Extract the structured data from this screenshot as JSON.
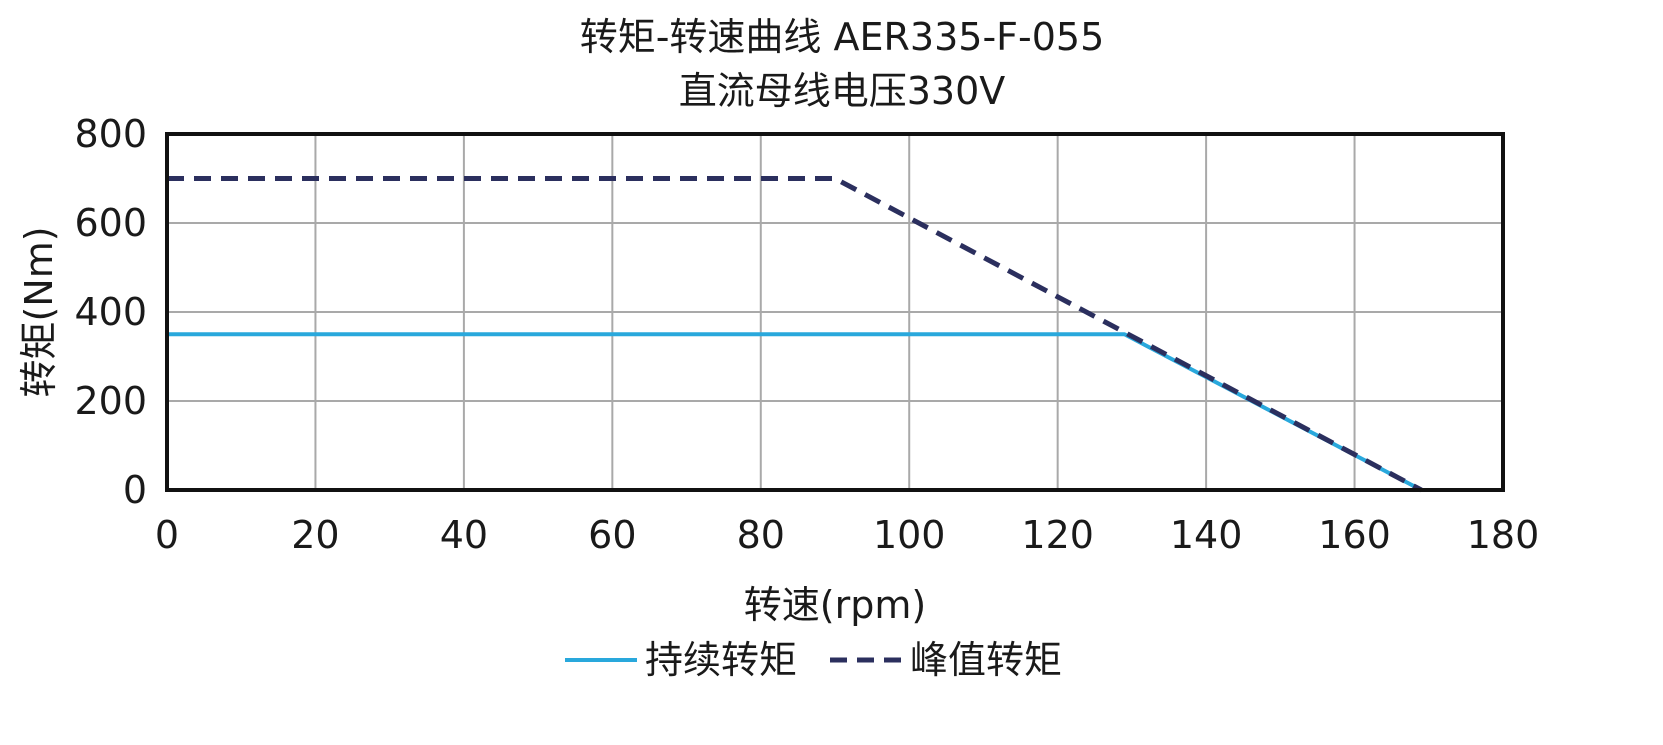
{
  "chart_data": {
    "type": "line",
    "title": "转矩-转速曲线 AER335-F-055",
    "subtitle": "直流母线电压330V",
    "xlabel": "转速(rpm)",
    "ylabel": "转矩(Nm)",
    "xlim": [
      0,
      180
    ],
    "ylim": [
      0,
      800
    ],
    "xticks": [
      0,
      20,
      40,
      60,
      80,
      100,
      120,
      140,
      160,
      180
    ],
    "yticks": [
      0,
      200,
      400,
      600,
      800
    ],
    "grid": true,
    "legend_position": "bottom",
    "series": [
      {
        "name": "持续转矩",
        "style": "solid",
        "color": "#29a8dc",
        "x": [
          0,
          129,
          169
        ],
        "y": [
          350,
          350,
          0
        ]
      },
      {
        "name": "峰值转矩",
        "style": "dashed",
        "color": "#2b2f5e",
        "x": [
          0,
          90,
          169
        ],
        "y": [
          700,
          700,
          0
        ]
      }
    ]
  }
}
